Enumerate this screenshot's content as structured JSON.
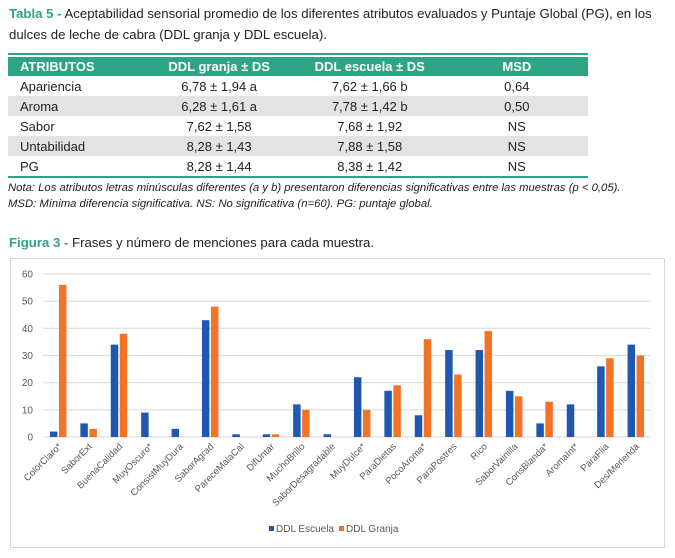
{
  "table_caption": {
    "label": "Tabla 5 -",
    "text": " Aceptabilidad sensorial promedio de los diferentes atributos evaluados y Puntaje Global (PG), en los dulces de leche de cabra (DDL granja y DDL escuela)."
  },
  "table": {
    "headers": [
      "ATRIBUTOS",
      "DDL granja ± DS",
      "DDL escuela ± DS",
      "MSD"
    ],
    "rows": [
      [
        "Apariencia",
        "6,78 ± 1,94 a",
        "7,62 ± 1,66 b",
        "0,64"
      ],
      [
        "Aroma",
        "6,28 ± 1,61 a",
        "7,78 ± 1,42 b",
        "0,50"
      ],
      [
        "Sabor",
        "7,62 ± 1,58",
        "7,68 ± 1,92",
        "NS"
      ],
      [
        "Untabilidad",
        "8,28 ± 1,43",
        "7,88 ± 1,58",
        "NS"
      ],
      [
        "PG",
        "8,28 ± 1,44",
        "8,38 ± 1,42",
        "NS"
      ]
    ],
    "note_line1": "Nota: Los atributos letras minúsculas diferentes (a y b) presentaron diferencias significativas entre las muestras (p < 0,05).",
    "note_line2": "MSD: Mínima diferencia significativa. NS: No significativa (n=60). PG: puntaje global."
  },
  "figure_caption": {
    "label": "Figura 3 -",
    "text": " Frases y número de menciones para cada muestra."
  },
  "colors": {
    "accent": "#2ea385",
    "row_alt": "#e3e3e3",
    "series_escuela": "#2058b0",
    "series_granja": "#f07328",
    "grid": "#d9dde3"
  },
  "chart_data": {
    "type": "bar",
    "title": "",
    "xlabel": "",
    "ylabel": "",
    "ylim": [
      0,
      60
    ],
    "yticks": [
      0,
      10,
      20,
      30,
      40,
      50,
      60
    ],
    "grid": true,
    "legend_position": "bottom-center",
    "categories": [
      "ColorClaro*",
      "SaborExt",
      "BuenaCalidad",
      "MuyOscuro*",
      "ConsistMuyDura",
      "SaborAgrad",
      "PareceMalaCal",
      "DifUntar",
      "MuchoBrillo",
      "SaborDesagradable",
      "MuyDulce*",
      "ParaDietas",
      "PocoAroma*",
      "ParaPostres",
      "Rico",
      "SaborVainilla",
      "ConsBlanda*",
      "AromaInt*",
      "ParaFlia",
      "Des/Merienda"
    ],
    "series": [
      {
        "name": "DDL Escuela",
        "color": "#2058b0",
        "values": [
          2,
          5,
          34,
          9,
          3,
          43,
          1,
          1,
          12,
          1,
          22,
          17,
          8,
          32,
          32,
          17,
          5,
          12,
          26,
          34
        ]
      },
      {
        "name": "DDL Granja",
        "color": "#f07328",
        "values": [
          56,
          3,
          38,
          0,
          0,
          48,
          0,
          1,
          10,
          0,
          10,
          19,
          36,
          23,
          39,
          15,
          13,
          0,
          29,
          30
        ]
      }
    ]
  }
}
